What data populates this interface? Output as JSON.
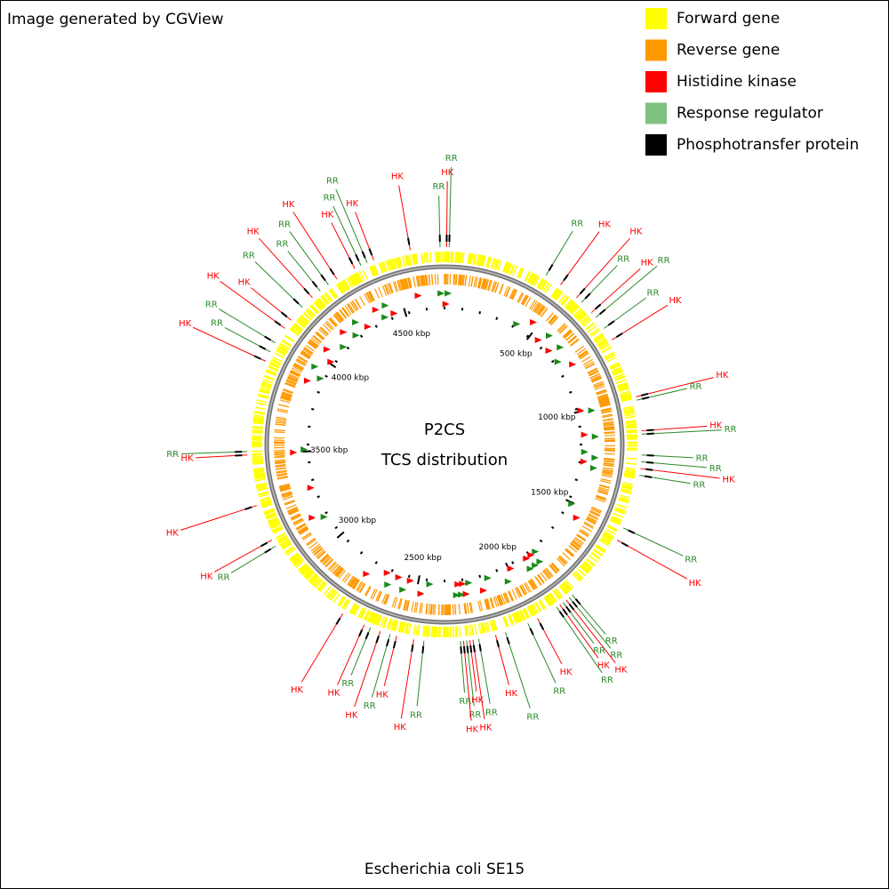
{
  "credit": "Image generated by CGView",
  "legend": [
    {
      "label": "Forward gene",
      "color": "#ffff00"
    },
    {
      "label": "Reverse gene",
      "color": "#ff9900"
    },
    {
      "label": "Histidine kinase",
      "color": "#ff0000"
    },
    {
      "label": "Response regulator",
      "color": "#80c080"
    },
    {
      "label": "Phosphotransfer protein",
      "color": "#000000"
    }
  ],
  "title": "P2CS",
  "subtitle": "TCS distribution",
  "organism": "Escherichia coli SE15",
  "range_kbp": [
    0,
    4717
  ],
  "ticks": [
    {
      "value": 500,
      "label": "500 kbp"
    },
    {
      "value": 1000,
      "label": "1000 kbp"
    },
    {
      "value": 1500,
      "label": "1500 kbp"
    },
    {
      "value": 2000,
      "label": "2000 kbp"
    },
    {
      "value": 2500,
      "label": "2500 kbp"
    },
    {
      "value": 3000,
      "label": "3000 kbp"
    },
    {
      "value": 3500,
      "label": "3500 kbp"
    },
    {
      "value": 4000,
      "label": "4000 kbp"
    },
    {
      "value": 4500,
      "label": "4500 kbp"
    }
  ],
  "features": [
    {
      "label": "RR",
      "class": 3,
      "position": 4700
    },
    {
      "label": "HK",
      "class": 2,
      "position": 8
    },
    {
      "label": "RR",
      "class": 3,
      "position": 18
    },
    {
      "label": "RR",
      "class": 3,
      "position": 406
    },
    {
      "label": "HK",
      "class": 2,
      "position": 472
    },
    {
      "label": "HK",
      "class": 2,
      "position": 550
    },
    {
      "label": "RR",
      "class": 3,
      "position": 576
    },
    {
      "label": "HK",
      "class": 2,
      "position": 630
    },
    {
      "label": "RR",
      "class": 3,
      "position": 655
    },
    {
      "label": "RR",
      "class": 3,
      "position": 707
    },
    {
      "label": "HK",
      "class": 2,
      "position": 760
    },
    {
      "label": "HK",
      "class": 2,
      "position": 996
    },
    {
      "label": "RR",
      "class": 3,
      "position": 1009
    },
    {
      "label": "HK",
      "class": 2,
      "position": 1127
    },
    {
      "label": "RR",
      "class": 3,
      "position": 1140
    },
    {
      "label": "RR",
      "class": 3,
      "position": 1219
    },
    {
      "label": "RR",
      "class": 3,
      "position": 1245
    },
    {
      "label": "HK",
      "class": 2,
      "position": 1271
    },
    {
      "label": "RR",
      "class": 3,
      "position": 1297
    },
    {
      "label": "RR",
      "class": 3,
      "position": 1507
    },
    {
      "label": "HK",
      "class": 2,
      "position": 1559
    },
    {
      "label": "RR",
      "class": 3,
      "position": 1830
    },
    {
      "label": "RR",
      "class": 3,
      "position": 1845
    },
    {
      "label": "HK",
      "class": 2,
      "position": 1860
    },
    {
      "label": "RR",
      "class": 3,
      "position": 1875
    },
    {
      "label": "HK",
      "class": 2,
      "position": 1890
    },
    {
      "label": "RR",
      "class": 3,
      "position": 1905
    },
    {
      "label": "HK",
      "class": 2,
      "position": 1990
    },
    {
      "label": "RR",
      "class": 3,
      "position": 2031
    },
    {
      "label": "RR",
      "class": 3,
      "position": 2123
    },
    {
      "label": "HK",
      "class": 2,
      "position": 2162
    },
    {
      "label": "RR",
      "class": 3,
      "position": 2228
    },
    {
      "label": "HK",
      "class": 2,
      "position": 2250
    },
    {
      "label": "HK",
      "class": 2,
      "position": 2262
    },
    {
      "label": "RR",
      "class": 3,
      "position": 2274
    },
    {
      "label": "HK",
      "class": 2,
      "position": 2286
    },
    {
      "label": "RR",
      "class": 3,
      "position": 2298
    },
    {
      "label": "RR",
      "class": 3,
      "position": 2437
    },
    {
      "label": "HK",
      "class": 2,
      "position": 2476
    },
    {
      "label": "HK",
      "class": 2,
      "position": 2542
    },
    {
      "label": "RR",
      "class": 3,
      "position": 2568
    },
    {
      "label": "HK",
      "class": 2,
      "position": 2607
    },
    {
      "label": "RR",
      "class": 3,
      "position": 2647
    },
    {
      "label": "HK",
      "class": 2,
      "position": 2673
    },
    {
      "label": "HK",
      "class": 2,
      "position": 2765
    },
    {
      "label": "RR",
      "class": 3,
      "position": 3131
    },
    {
      "label": "HK",
      "class": 2,
      "position": 3158
    },
    {
      "label": "HK",
      "class": 2,
      "position": 3302
    },
    {
      "label": "HK",
      "class": 2,
      "position": 3498
    },
    {
      "label": "RR",
      "class": 3,
      "position": 3511
    },
    {
      "label": "HK",
      "class": 2,
      "position": 3865
    },
    {
      "label": "RR",
      "class": 3,
      "position": 3905
    },
    {
      "label": "RR",
      "class": 3,
      "position": 3944
    },
    {
      "label": "HK",
      "class": 2,
      "position": 4010
    },
    {
      "label": "HK",
      "class": 2,
      "position": 4049
    },
    {
      "label": "RR",
      "class": 3,
      "position": 4114
    },
    {
      "label": "HK",
      "class": 2,
      "position": 4167
    },
    {
      "label": "RR",
      "class": 3,
      "position": 4206
    },
    {
      "label": "RR",
      "class": 3,
      "position": 4245
    },
    {
      "label": "HK",
      "class": 2,
      "position": 4284
    },
    {
      "label": "HK",
      "class": 2,
      "position": 4363
    },
    {
      "label": "RR",
      "class": 3,
      "position": 4389
    },
    {
      "label": "RR",
      "class": 3,
      "position": 4415
    },
    {
      "label": "HK",
      "class": 2,
      "position": 4442
    },
    {
      "label": "HK",
      "class": 2,
      "position": 4586
    }
  ]
}
